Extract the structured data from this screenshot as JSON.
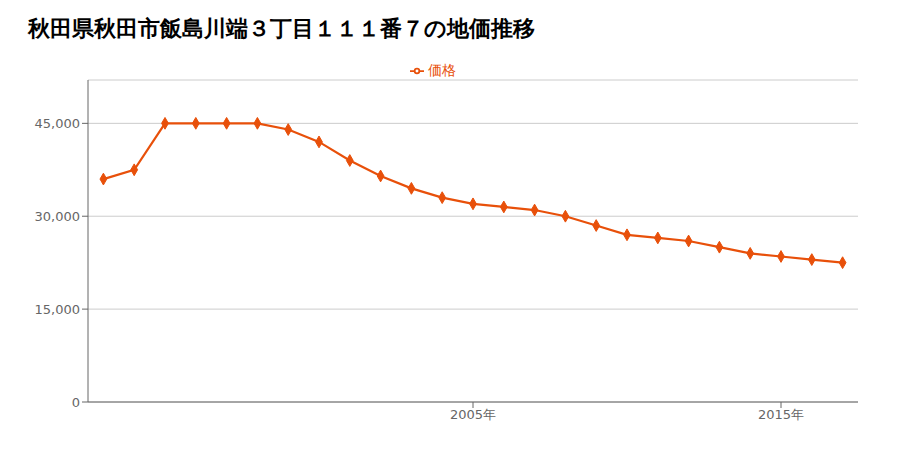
{
  "chart_data": {
    "type": "line",
    "title": "秋田県秋田市飯島川端３丁目１１１番７の地価推移",
    "x": [
      1993,
      1994,
      1995,
      1996,
      1997,
      1998,
      1999,
      2000,
      2001,
      2002,
      2003,
      2004,
      2005,
      2006,
      2007,
      2008,
      2009,
      2010,
      2011,
      2012,
      2013,
      2014,
      2015,
      2016,
      2017
    ],
    "series": [
      {
        "name": "価格",
        "color": "#e8500a",
        "marker": "diamond",
        "values": [
          36000,
          37500,
          45000,
          45000,
          45000,
          45000,
          44000,
          42000,
          39000,
          36500,
          34500,
          33000,
          32000,
          31500,
          31000,
          30000,
          28500,
          27000,
          26500,
          26000,
          25000,
          24000,
          23500,
          23000,
          22500
        ]
      }
    ],
    "xlim": [
      1992.5,
      2017.5
    ],
    "xticks": [
      {
        "value": 2005,
        "label": "2005年"
      },
      {
        "value": 2015,
        "label": "2015年"
      }
    ],
    "ylim": [
      0,
      52000
    ],
    "yticks": [
      0,
      {
        "value": 15000,
        "label": "15,000"
      },
      {
        "value": 30000,
        "label": "30,000"
      },
      {
        "value": 45000,
        "label": "45,000"
      }
    ],
    "grid": "y",
    "legend": "top"
  }
}
